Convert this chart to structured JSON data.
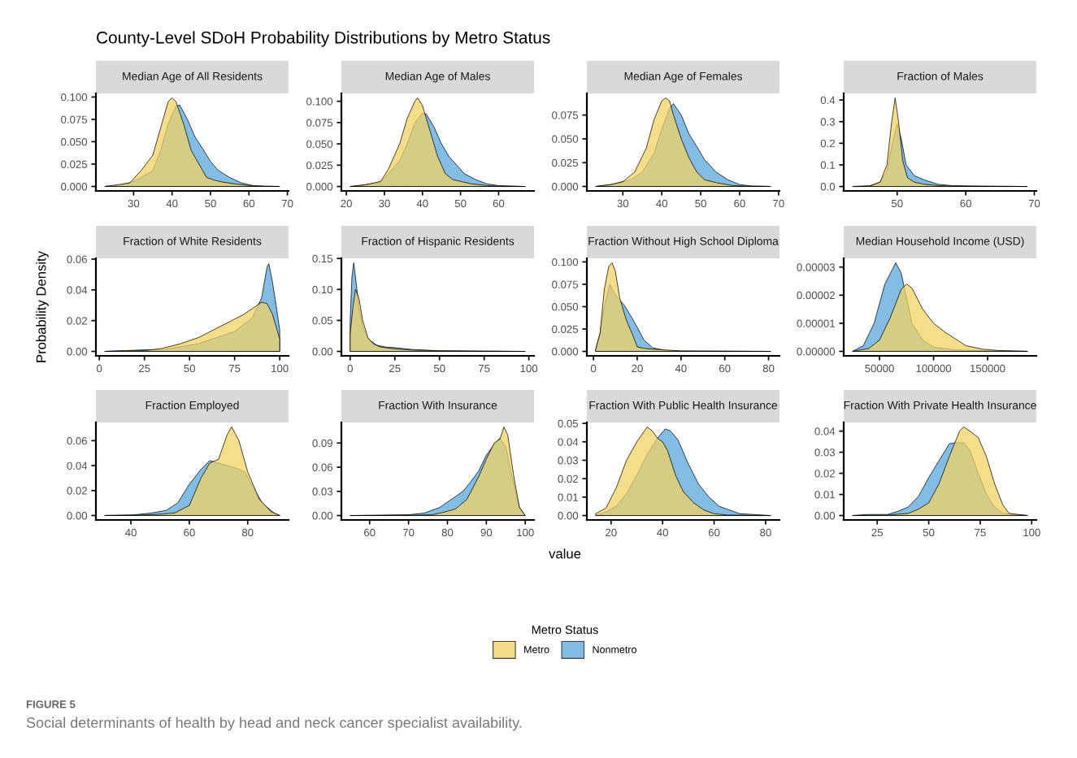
{
  "chart_data": [
    {
      "type": "area",
      "title": "Median Age of All Residents",
      "xlim": [
        20.2,
        70.3
      ],
      "xticks": [
        30,
        40,
        50,
        60,
        70
      ],
      "ylim": [
        -0.005,
        0.104
      ],
      "yticks": [
        {
          "value": 0,
          "label": "0.000"
        },
        {
          "value": 0.025,
          "label": "0.025"
        },
        {
          "value": 0.05,
          "label": "0.050"
        },
        {
          "value": 0.075,
          "label": "0.075"
        },
        {
          "value": 0.1,
          "label": "0.100"
        }
      ],
      "annotations": [
        "County-Level SDoH Probability Distributions by Metro Status",
        "FIGURE 5",
        "Social determinants of health by head and neck cancer specialist availability."
      ],
      "series": [
        {
          "color": "#f0d264",
          "x": [
            22.5,
            26,
            29,
            32,
            35,
            37,
            39,
            40,
            41,
            43,
            45,
            47,
            49,
            51,
            53,
            56,
            60,
            64,
            68
          ],
          "values": [
            0,
            0.002,
            0.004,
            0.018,
            0.035,
            0.065,
            0.095,
            0.099,
            0.095,
            0.07,
            0.04,
            0.025,
            0.01,
            0.007,
            0.005,
            0.003,
            0.001,
            0.0003,
            0
          ]
        },
        {
          "color": "#5aa5dc",
          "x": [
            22.5,
            26,
            29,
            32,
            35,
            37,
            39,
            41,
            42,
            44,
            46,
            48,
            50,
            52,
            55,
            58,
            61,
            64,
            68
          ],
          "values": [
            0,
            0.001,
            0.004,
            0.01,
            0.018,
            0.04,
            0.07,
            0.09,
            0.091,
            0.075,
            0.055,
            0.042,
            0.028,
            0.018,
            0.01,
            0.004,
            0.001,
            0.0002,
            0
          ]
        }
      ]
    },
    {
      "type": "area",
      "title": "Median Age of Males",
      "xlim": [
        18.7,
        69.3
      ],
      "xticks": [
        20,
        30,
        40,
        50,
        60
      ],
      "ylim": [
        -0.0052,
        0.1092
      ],
      "yticks": [
        {
          "value": 0,
          "label": "0.000"
        },
        {
          "value": 0.025,
          "label": "0.025"
        },
        {
          "value": 0.05,
          "label": "0.050"
        },
        {
          "value": 0.075,
          "label": "0.075"
        },
        {
          "value": 0.1,
          "label": "0.100"
        }
      ],
      "series": [
        {
          "color": "#f0d264",
          "x": [
            21,
            25,
            29,
            31,
            34,
            36,
            38,
            38.7,
            40,
            42,
            44,
            46,
            48,
            50,
            53,
            57,
            62,
            67
          ],
          "values": [
            0,
            0.002,
            0.006,
            0.02,
            0.05,
            0.08,
            0.1,
            0.104,
            0.095,
            0.065,
            0.035,
            0.015,
            0.008,
            0.006,
            0.003,
            0.001,
            0.0003,
            0
          ]
        },
        {
          "color": "#5aa5dc",
          "x": [
            21,
            25,
            29,
            31,
            34,
            36,
            38,
            40,
            41,
            43,
            45,
            47,
            49,
            51,
            54,
            57,
            60,
            67
          ],
          "values": [
            0,
            0.002,
            0.005,
            0.015,
            0.03,
            0.05,
            0.075,
            0.086,
            0.085,
            0.07,
            0.05,
            0.035,
            0.025,
            0.015,
            0.008,
            0.003,
            0.001,
            0
          ]
        }
      ]
    },
    {
      "type": "area",
      "title": "Median Age of Females",
      "xlim": [
        20.75,
        70.25
      ],
      "xticks": [
        30,
        40,
        50,
        60,
        70
      ],
      "ylim": [
        -0.0047,
        0.0977
      ],
      "yticks": [
        {
          "value": 0,
          "label": "0.000"
        },
        {
          "value": 0.025,
          "label": "0.025"
        },
        {
          "value": 0.05,
          "label": "0.050"
        },
        {
          "value": 0.075,
          "label": "0.075"
        }
      ],
      "series": [
        {
          "color": "#f0d264",
          "x": [
            23,
            27,
            30,
            33,
            36,
            38,
            40,
            41,
            42,
            43,
            45,
            47,
            49,
            51,
            54,
            58,
            62,
            68
          ],
          "values": [
            0,
            0.002,
            0.005,
            0.015,
            0.04,
            0.07,
            0.09,
            0.093,
            0.09,
            0.075,
            0.05,
            0.03,
            0.015,
            0.007,
            0.004,
            0.001,
            0.0003,
            0
          ]
        },
        {
          "color": "#5aa5dc",
          "x": [
            23,
            27,
            29,
            32,
            35,
            38,
            40,
            42,
            43,
            45,
            47,
            49,
            51,
            54,
            57,
            60,
            63,
            68
          ],
          "values": [
            0,
            0.002,
            0.004,
            0.007,
            0.015,
            0.035,
            0.06,
            0.082,
            0.087,
            0.075,
            0.055,
            0.042,
            0.028,
            0.015,
            0.007,
            0.002,
            0.0005,
            0
          ]
        }
      ]
    },
    {
      "type": "area",
      "title": "Fraction of Males",
      "xlim": [
        42.2,
        70.3
      ],
      "xticks": [
        50,
        60,
        70
      ],
      "ylim": [
        -0.0205,
        0.4305
      ],
      "yticks": [
        {
          "value": 0,
          "label": "0.0"
        },
        0.1,
        0.2,
        0.3,
        0.4
      ],
      "series": [
        {
          "color": "#f0d264",
          "x": [
            43.5,
            46,
            47.5,
            48.5,
            49.2,
            49.7,
            50.2,
            50.8,
            51.5,
            52.5,
            54,
            56,
            60,
            65,
            69
          ],
          "values": [
            0,
            0.002,
            0.02,
            0.1,
            0.3,
            0.41,
            0.3,
            0.12,
            0.04,
            0.02,
            0.01,
            0.004,
            0.001,
            0.0003,
            0
          ]
        },
        {
          "color": "#5aa5dc",
          "x": [
            43.5,
            46,
            47.5,
            48.5,
            49.3,
            50,
            50.6,
            51.3,
            52.5,
            54,
            56,
            58,
            62,
            66,
            69
          ],
          "values": [
            0,
            0.003,
            0.02,
            0.07,
            0.2,
            0.29,
            0.22,
            0.1,
            0.05,
            0.03,
            0.01,
            0.004,
            0.002,
            0.001,
            0
          ]
        }
      ]
    },
    {
      "type": "area",
      "title": "Fraction of White Residents",
      "ylabel": "Probability Density",
      "xlim": [
        -1.9,
        104.9
      ],
      "xticks": [
        0,
        25,
        50,
        75,
        100
      ],
      "ylim": [
        -0.0029,
        0.0605
      ],
      "yticks": [
        {
          "value": 0,
          "label": "0.00"
        },
        {
          "value": 0.02,
          "label": "0.02"
        },
        {
          "value": 0.04,
          "label": "0.04"
        },
        {
          "value": 0.06,
          "label": "0.06"
        }
      ],
      "series": [
        {
          "color": "#f0d264",
          "x": [
            3,
            15,
            25,
            35,
            45,
            55,
            65,
            75,
            80,
            85,
            90,
            93,
            96,
            100
          ],
          "values": [
            0,
            0.0005,
            0.0005,
            0.002,
            0.005,
            0.009,
            0.015,
            0.021,
            0.024,
            0.028,
            0.032,
            0.031,
            0.024,
            0.008
          ]
        },
        {
          "color": "#5aa5dc",
          "x": [
            3,
            15,
            25,
            35,
            45,
            55,
            65,
            75,
            85,
            90,
            93,
            94,
            96,
            98,
            100
          ],
          "values": [
            0,
            0.0005,
            0.001,
            0.001,
            0.003,
            0.005,
            0.009,
            0.013,
            0.022,
            0.035,
            0.055,
            0.057,
            0.045,
            0.03,
            0.014
          ]
        }
      ]
    },
    {
      "type": "area",
      "title": "Fraction of Hispanic Residents",
      "xlim": [
        -4.9,
        102.9
      ],
      "xticks": [
        0,
        25,
        50,
        75,
        100
      ],
      "ylim": [
        -0.0072,
        0.1502
      ],
      "yticks": [
        {
          "value": 0,
          "label": "0.00"
        },
        0.05,
        {
          "value": 0.1,
          "label": "0.10"
        },
        0.15
      ],
      "series": [
        {
          "color": "#f0d264",
          "x": [
            0,
            1.5,
            3,
            5,
            7,
            10,
            13,
            17,
            25,
            35,
            50,
            70,
            98
          ],
          "values": [
            0.027,
            0.07,
            0.1,
            0.085,
            0.05,
            0.022,
            0.012,
            0.007,
            0.004,
            0.002,
            0.001,
            0.0005,
            0
          ]
        },
        {
          "color": "#5aa5dc",
          "x": [
            0,
            1,
            2,
            3,
            5,
            7,
            10,
            15,
            20,
            25,
            35,
            50,
            70,
            98
          ],
          "values": [
            0.05,
            0.12,
            0.143,
            0.12,
            0.07,
            0.04,
            0.02,
            0.01,
            0.007,
            0.006,
            0.003,
            0.001,
            0.0005,
            0
          ]
        }
      ]
    },
    {
      "type": "area",
      "title": "Fraction Without High School Diploma",
      "xlim": [
        -3,
        85
      ],
      "xticks": [
        0,
        20,
        40,
        60,
        80
      ],
      "ylim": [
        -0.005,
        0.104
      ],
      "yticks": [
        {
          "value": 0,
          "label": "0.000"
        },
        {
          "value": 0.025,
          "label": "0.025"
        },
        {
          "value": 0.05,
          "label": "0.050"
        },
        {
          "value": 0.075,
          "label": "0.075"
        },
        {
          "value": 0.1,
          "label": "0.100"
        }
      ],
      "series": [
        {
          "color": "#f0d264",
          "x": [
            1,
            3,
            5,
            7,
            8.5,
            10,
            12,
            15,
            18,
            20,
            24,
            30,
            40,
            81
          ],
          "values": [
            0.002,
            0.02,
            0.07,
            0.095,
            0.099,
            0.09,
            0.06,
            0.035,
            0.018,
            0.005,
            0.003,
            0.002,
            0.0005,
            0
          ]
        },
        {
          "color": "#5aa5dc",
          "x": [
            1,
            3,
            5,
            7.5,
            9,
            11,
            14,
            17,
            20,
            23,
            27,
            33,
            40,
            81
          ],
          "values": [
            0.002,
            0.02,
            0.05,
            0.075,
            0.068,
            0.06,
            0.052,
            0.04,
            0.027,
            0.013,
            0.004,
            0.001,
            0.0003,
            0
          ]
        }
      ]
    },
    {
      "type": "area",
      "title": "Median Household Income (USD)",
      "xlim": [
        16900,
        195100
      ],
      "xticks": [
        50000,
        100000,
        150000
      ],
      "ylim": [
        -1.6e-06,
        3.31e-05
      ],
      "yticks": [
        {
          "value": 0,
          "label": "0.00000"
        },
        {
          "value": 1e-05,
          "label": "0.00001"
        },
        {
          "value": 2e-05,
          "label": "0.00002"
        },
        {
          "value": 3e-05,
          "label": "0.00003"
        }
      ],
      "series": [
        {
          "color": "#f0d264",
          "x": [
            25000,
            40000,
            50000,
            60000,
            70000,
            75000,
            80000,
            90000,
            100000,
            110000,
            120000,
            130000,
            145000,
            160000,
            187000
          ],
          "values": [
            0,
            1e-06,
            4e-06,
            1.2e-05,
            2.2e-05,
            2.4e-05,
            2.25e-05,
            1.5e-05,
            1e-05,
            7e-06,
            4.5e-06,
            2e-06,
            8e-07,
            3e-07,
            0
          ]
        },
        {
          "color": "#5aa5dc",
          "x": [
            25000,
            35000,
            45000,
            55000,
            65000,
            70000,
            75000,
            80000,
            90000,
            100000,
            120000,
            150000,
            187000
          ],
          "values": [
            0,
            2e-06,
            1e-05,
            2.4e-05,
            3.15e-05,
            2.8e-05,
            1.9e-05,
            1e-05,
            4e-06,
            1.5e-06,
            5e-07,
            2e-07,
            0
          ]
        }
      ]
    },
    {
      "type": "area",
      "title": "Fraction Employed",
      "xlim": [
        28,
        94
      ],
      "xticks": [
        40,
        60,
        80
      ],
      "ylim": [
        -0.0036,
        0.0746
      ],
      "yticks": [
        {
          "value": 0,
          "label": "0.00"
        },
        {
          "value": 0.02,
          "label": "0.02"
        },
        {
          "value": 0.04,
          "label": "0.04"
        },
        {
          "value": 0.06,
          "label": "0.06"
        }
      ],
      "series": [
        {
          "color": "#f0d264",
          "x": [
            31,
            41,
            50,
            55,
            60,
            64,
            67,
            70,
            73,
            74.5,
            77,
            80,
            84,
            88,
            91
          ],
          "values": [
            0,
            0.0002,
            0.001,
            0.002,
            0.008,
            0.03,
            0.042,
            0.045,
            0.065,
            0.071,
            0.06,
            0.035,
            0.013,
            0.003,
            0
          ]
        },
        {
          "color": "#5aa5dc",
          "x": [
            31,
            41,
            47,
            52,
            56,
            60,
            64,
            67,
            70,
            73,
            76,
            79,
            82,
            85,
            89,
            91
          ],
          "values": [
            0,
            0.0005,
            0.002,
            0.004,
            0.01,
            0.025,
            0.037,
            0.044,
            0.042,
            0.04,
            0.038,
            0.035,
            0.022,
            0.01,
            0.002,
            0
          ]
        }
      ]
    },
    {
      "type": "area",
      "title": "Fraction With Insurance",
      "xlim": [
        52.75,
        102.25
      ],
      "xticks": [
        60,
        70,
        80,
        90,
        100
      ],
      "ylim": [
        -0.0055,
        0.1155
      ],
      "yticks": [
        {
          "value": 0,
          "label": "0.00"
        },
        0.03,
        0.06,
        0.09
      ],
      "series": [
        {
          "color": "#f0d264",
          "x": [
            55,
            70,
            76,
            79,
            82,
            85,
            88,
            90,
            92,
            93.5,
            94.5,
            95.5,
            97,
            98.5,
            100
          ],
          "values": [
            0,
            0.0003,
            0.001,
            0.004,
            0.008,
            0.02,
            0.048,
            0.07,
            0.09,
            0.095,
            0.11,
            0.1,
            0.05,
            0.01,
            0
          ]
        },
        {
          "color": "#5aa5dc",
          "x": [
            55,
            70,
            74,
            78,
            81,
            84,
            86,
            88,
            90,
            92,
            93.5,
            95,
            96.5,
            98.5,
            100
          ],
          "values": [
            0,
            0.001,
            0.003,
            0.01,
            0.02,
            0.03,
            0.042,
            0.055,
            0.075,
            0.088,
            0.096,
            0.085,
            0.05,
            0.01,
            0
          ]
        }
      ]
    },
    {
      "type": "area",
      "title": "Fraction With Public Health Insurance",
      "xlabel": "value",
      "legend": "bottom",
      "legend_title": "Metro Status",
      "xlim": [
        10.6,
        85.4
      ],
      "xticks": [
        20,
        40,
        60,
        80
      ],
      "ylim": [
        -0.0024,
        0.0505
      ],
      "yticks": [
        {
          "value": 0,
          "label": "0.00"
        },
        0.01,
        0.02,
        0.03,
        0.04,
        0.05
      ],
      "series": [
        {
          "name": "Metro",
          "color": "#f0d264",
          "x": [
            14,
            18,
            22,
            26,
            30,
            34,
            36,
            38,
            40,
            42,
            45,
            48,
            52,
            56,
            60,
            65,
            82
          ],
          "values": [
            0.001,
            0.004,
            0.015,
            0.03,
            0.04,
            0.048,
            0.046,
            0.042,
            0.04,
            0.035,
            0.022,
            0.013,
            0.007,
            0.003,
            0.001,
            0.0003,
            0
          ]
        },
        {
          "name": "Nonmetro",
          "color": "#5aa5dc",
          "x": [
            14,
            18,
            22,
            26,
            30,
            34,
            38,
            41,
            43,
            46,
            50,
            54,
            58,
            62,
            66,
            70,
            82
          ],
          "values": [
            0,
            0.002,
            0.005,
            0.012,
            0.022,
            0.033,
            0.042,
            0.047,
            0.046,
            0.041,
            0.028,
            0.017,
            0.01,
            0.005,
            0.003,
            0.001,
            0
          ]
        }
      ]
    },
    {
      "type": "area",
      "title": "Fraction With Private Health Insurance",
      "xlim": [
        8.75,
        102.25
      ],
      "xticks": [
        25,
        50,
        75,
        100
      ],
      "ylim": [
        -0.0021,
        0.0441
      ],
      "yticks": [
        {
          "value": 0,
          "label": "0.00"
        },
        0.01,
        0.02,
        0.03,
        0.04
      ],
      "series": [
        {
          "color": "#f0d264",
          "x": [
            13,
            30,
            40,
            45,
            50,
            55,
            60,
            65,
            67,
            70,
            74,
            78,
            82,
            86,
            89,
            98
          ],
          "values": [
            0,
            0.0002,
            0.001,
            0.003,
            0.006,
            0.015,
            0.028,
            0.04,
            0.042,
            0.04,
            0.037,
            0.028,
            0.015,
            0.005,
            0.001,
            0
          ]
        },
        {
          "color": "#5aa5dc",
          "x": [
            13,
            20,
            30,
            35,
            40,
            45,
            50,
            55,
            60,
            63,
            67,
            70,
            74,
            78,
            82,
            86,
            98
          ],
          "values": [
            0,
            0.0005,
            0.0005,
            0.002,
            0.004,
            0.009,
            0.018,
            0.026,
            0.034,
            0.0345,
            0.0345,
            0.031,
            0.02,
            0.01,
            0.004,
            0.001,
            0
          ]
        }
      ]
    }
  ]
}
